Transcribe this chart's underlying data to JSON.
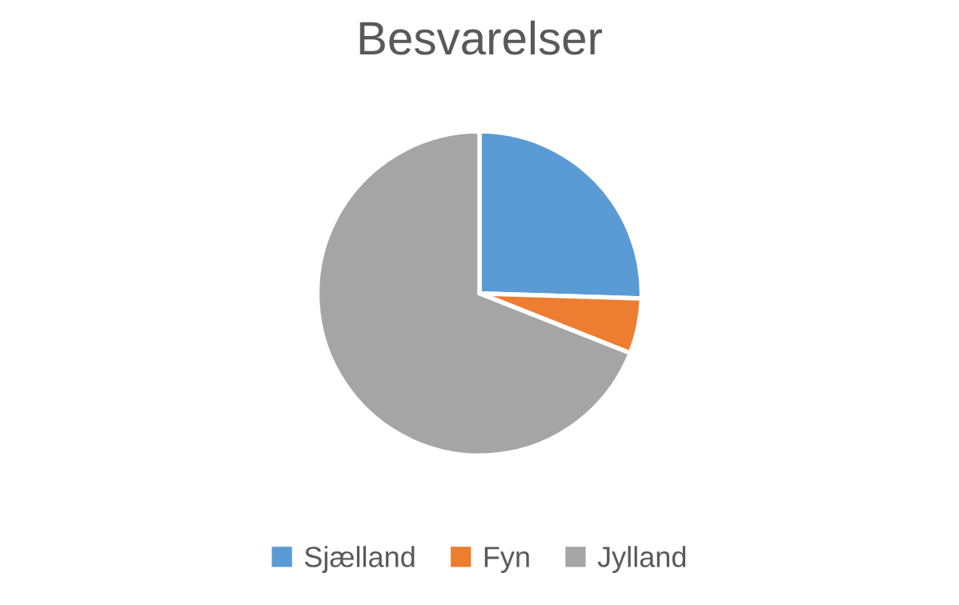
{
  "chart_data": {
    "type": "pie",
    "title": "Besvarelser",
    "categories": [
      "Sjælland",
      "Fyn",
      "Jylland"
    ],
    "values": [
      25.5,
      5.5,
      69
    ],
    "colors": [
      "#5b9bd5",
      "#ed7d31",
      "#a5a5a5"
    ],
    "legend": "bottom"
  }
}
